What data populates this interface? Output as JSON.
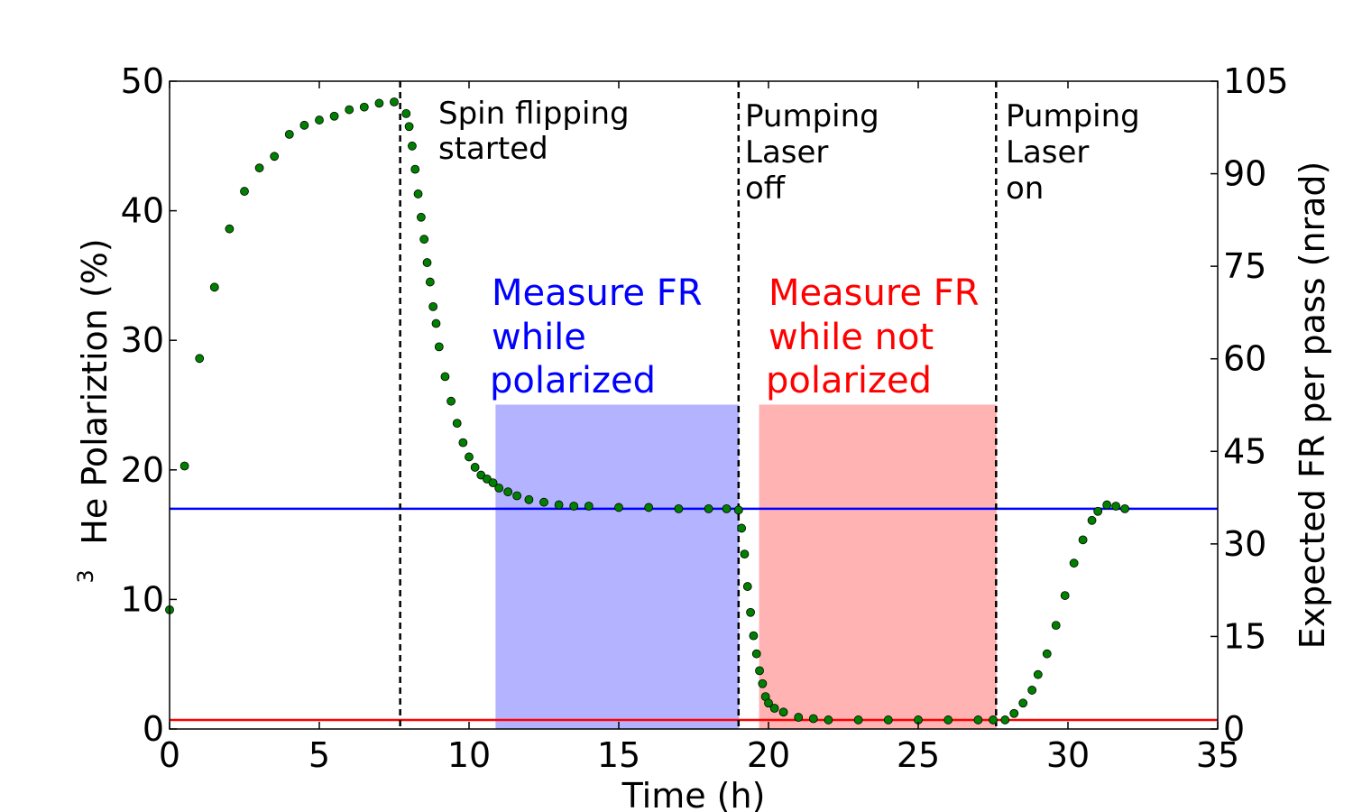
{
  "chart_data": {
    "type": "scatter",
    "title": "",
    "xlabel": "Time (h)",
    "ylabel_superscript": "3",
    "ylabel": "He Polariztion (%)",
    "y2label": "Expected FR per pass (nrad)",
    "xlim": [
      0,
      35
    ],
    "ylim": [
      0,
      50
    ],
    "y2lim": [
      0,
      105
    ],
    "xticks": [
      0,
      5,
      10,
      15,
      20,
      25,
      30,
      35
    ],
    "yticks": [
      0,
      10,
      20,
      30,
      40,
      50
    ],
    "y2ticks": [
      0,
      15,
      30,
      45,
      60,
      75,
      90,
      105
    ],
    "xtick_labels": [
      "0",
      "5",
      "10",
      "15",
      "20",
      "25",
      "30",
      "35"
    ],
    "ytick_labels": [
      "0",
      "10",
      "20",
      "30",
      "40",
      "50"
    ],
    "y2tick_labels": [
      "0",
      "15",
      "30",
      "45",
      "60",
      "75",
      "90",
      "105"
    ],
    "grid": false,
    "colors": {
      "points": "#008000",
      "point_edge": "#000000",
      "blue": "#0000ff",
      "red": "#ff0000",
      "blue_fill": "#b3b3ff",
      "red_fill": "#ffb3b3"
    },
    "series": [
      {
        "name": "3He polarization",
        "x": [
          0.0,
          0.5,
          1.0,
          1.5,
          2.0,
          2.5,
          3.0,
          3.5,
          4.0,
          4.5,
          5.0,
          5.5,
          6.0,
          6.5,
          7.0,
          7.5,
          7.9,
          8.0,
          8.1,
          8.2,
          8.3,
          8.4,
          8.5,
          8.6,
          8.7,
          8.8,
          8.9,
          9.0,
          9.2,
          9.4,
          9.6,
          9.8,
          10.0,
          10.2,
          10.4,
          10.6,
          10.8,
          11.0,
          11.3,
          11.6,
          12.0,
          12.5,
          13.0,
          13.5,
          14.0,
          15.0,
          16.0,
          17.0,
          18.0,
          18.6,
          19.0,
          19.1,
          19.2,
          19.3,
          19.4,
          19.5,
          19.6,
          19.7,
          19.8,
          19.9,
          20.0,
          20.2,
          20.5,
          21.0,
          21.5,
          22.0,
          23.0,
          24.0,
          25.0,
          26.0,
          27.0,
          27.5,
          27.9,
          28.2,
          28.5,
          28.8,
          29.0,
          29.3,
          29.6,
          29.9,
          30.2,
          30.5,
          30.8,
          31.0,
          31.3,
          31.6,
          31.9
        ],
        "y": [
          9.2,
          20.3,
          28.6,
          34.1,
          38.6,
          41.5,
          43.3,
          44.2,
          45.9,
          46.6,
          47.0,
          47.3,
          47.8,
          48.0,
          48.3,
          48.4,
          47.5,
          46.5,
          45.0,
          43.2,
          41.3,
          39.5,
          37.8,
          36.0,
          34.5,
          32.6,
          31.3,
          29.5,
          27.2,
          25.3,
          23.6,
          22.1,
          21.0,
          20.2,
          19.6,
          19.3,
          19.0,
          18.6,
          18.3,
          18.0,
          17.7,
          17.5,
          17.3,
          17.2,
          17.2,
          17.1,
          17.1,
          17.0,
          17.0,
          17.0,
          16.9,
          15.5,
          13.5,
          11.0,
          9.0,
          7.2,
          5.8,
          4.5,
          3.5,
          2.5,
          2.0,
          1.6,
          1.3,
          0.9,
          0.8,
          0.7,
          0.7,
          0.7,
          0.7,
          0.7,
          0.7,
          0.7,
          0.7,
          1.2,
          2.0,
          3.0,
          4.2,
          5.8,
          8.0,
          10.3,
          12.8,
          14.6,
          16.1,
          16.8,
          17.3,
          17.2,
          17.0
        ]
      }
    ],
    "hlines": [
      {
        "name": "polarized-level",
        "y": 17.0,
        "color": "#0000ff"
      },
      {
        "name": "unpolarized-level",
        "y": 0.7,
        "color": "#ff0000"
      }
    ],
    "vlines": [
      {
        "name": "spin-flip-start",
        "x": 7.7
      },
      {
        "name": "laser-off",
        "x": 19.0
      },
      {
        "name": "laser-on",
        "x": 27.6
      }
    ],
    "spans": [
      {
        "name": "measure-polarized-span",
        "x0": 10.9,
        "x1": 19.0,
        "y0": 0,
        "y1": 25,
        "color": "#b3b3ff"
      },
      {
        "name": "measure-unpolarized-span",
        "x0": 19.7,
        "x1": 27.6,
        "y0": 0,
        "y1": 25,
        "color": "#ffb3b3"
      }
    ],
    "annotations": {
      "spin_flipping": [
        "Spin flipping",
        "started"
      ],
      "laser_off": [
        "Pumping",
        "Laser",
        "off"
      ],
      "laser_on": [
        "Pumping",
        "Laser",
        "on"
      ],
      "measure_polarized": [
        "Measure FR",
        "while",
        "polarized"
      ],
      "measure_unpolarized": [
        "Measure FR",
        "while not",
        "polarized"
      ]
    }
  }
}
